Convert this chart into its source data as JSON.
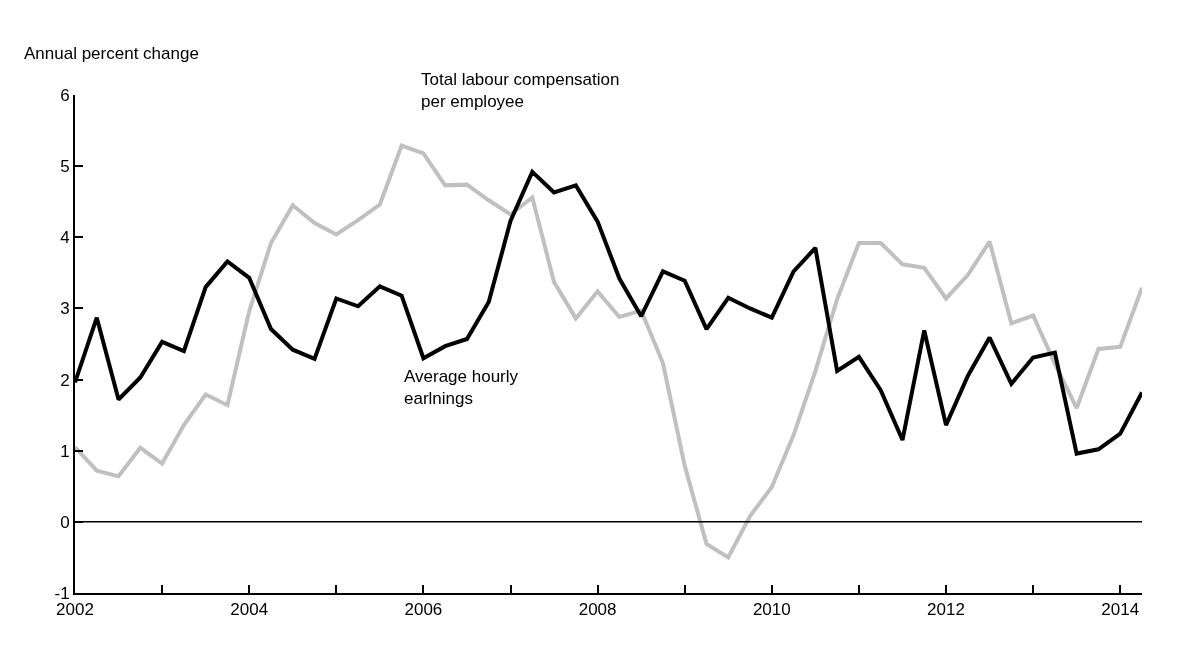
{
  "chart_data": {
    "type": "line",
    "ylabel": "Annual percent change",
    "legend": false,
    "marker": "none",
    "line_style": "solid",
    "x": [
      2002,
      2002.25,
      2002.5,
      2002.75,
      2003,
      2003.25,
      2003.5,
      2003.75,
      2004,
      2004.25,
      2004.5,
      2004.75,
      2005,
      2005.25,
      2005.5,
      2005.75,
      2006,
      2006.25,
      2006.5,
      2006.75,
      2007,
      2007.25,
      2007.5,
      2007.75,
      2008,
      2008.25,
      2008.5,
      2008.75,
      2009,
      2009.25,
      2009.5,
      2009.75,
      2010,
      2010.25,
      2010.5,
      2010.75,
      2011,
      2011.25,
      2011.5,
      2011.75,
      2012,
      2012.25,
      2012.5,
      2012.75,
      2013,
      2013.25,
      2013.5,
      2013.75,
      2014,
      2014.25
    ],
    "series": [
      {
        "name": "Total labour compensation per employee",
        "color": "#c0c0c0",
        "values": [
          1.05,
          0.72,
          0.64,
          1.04,
          0.82,
          1.36,
          1.79,
          1.64,
          2.96,
          3.92,
          4.45,
          4.2,
          4.04,
          4.24,
          4.46,
          5.29,
          5.18,
          4.73,
          4.74,
          4.52,
          4.32,
          4.56,
          3.37,
          2.86,
          3.24,
          2.88,
          2.97,
          2.23,
          0.79,
          -0.31,
          -0.5,
          0.08,
          0.49,
          1.22,
          2.12,
          3.13,
          3.92,
          3.92,
          3.62,
          3.57,
          3.14,
          3.47,
          3.94,
          2.79,
          2.9,
          2.22,
          1.6,
          2.43,
          2.46,
          3.29
        ]
      },
      {
        "name": "Average hourly earlnings",
        "color": "#000000",
        "values": [
          1.96,
          2.87,
          1.72,
          2.03,
          2.53,
          2.4,
          3.3,
          3.66,
          3.43,
          2.71,
          2.42,
          2.29,
          3.14,
          3.03,
          3.31,
          3.18,
          2.3,
          2.47,
          2.57,
          3.09,
          4.23,
          4.92,
          4.63,
          4.73,
          4.22,
          3.42,
          2.89,
          3.52,
          3.39,
          2.71,
          3.15,
          3.0,
          2.87,
          3.52,
          3.85,
          2.12,
          2.32,
          1.85,
          1.15,
          2.69,
          1.36,
          2.05,
          2.59,
          1.94,
          2.31,
          2.38,
          0.96,
          1.02,
          1.24,
          1.82
        ]
      }
    ],
    "xlim": [
      2002,
      2014.25
    ],
    "xticks": [
      2002,
      {
        "value": 2003,
        "label": null
      },
      2004,
      {
        "value": 2005,
        "label": null
      },
      2006,
      {
        "value": 2007,
        "label": null
      },
      2008,
      {
        "value": 2009,
        "label": null
      },
      2010,
      {
        "value": 2011,
        "label": null
      },
      2012,
      {
        "value": 2013,
        "label": null
      },
      2014
    ],
    "ylim": [
      -1,
      6
    ],
    "yticks": [
      -1,
      0,
      1,
      2,
      3,
      4,
      5,
      6
    ],
    "ref_lines": [
      {
        "axis": "y",
        "value": 0,
        "color": "#000000",
        "line_style": "solid"
      }
    ]
  }
}
